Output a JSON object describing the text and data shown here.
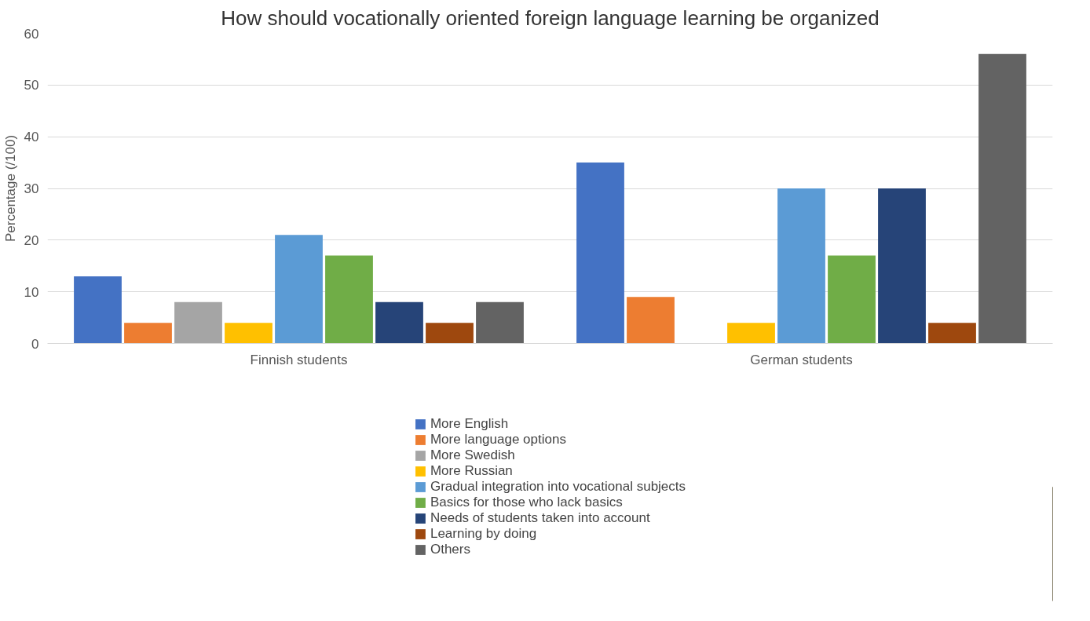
{
  "chart_data": {
    "type": "bar",
    "title": "How should vocationally oriented foreign language learning be organized",
    "ylabel": "Percentage (/100)",
    "categories": [
      "Finnish students",
      "German students"
    ],
    "series": [
      {
        "name": "More English",
        "color": "#4472c4",
        "values": [
          13,
          35
        ]
      },
      {
        "name": "More language options",
        "color": "#ed7d31",
        "values": [
          4,
          9
        ]
      },
      {
        "name": "More Swedish",
        "color": "#a5a5a5",
        "values": [
          8,
          0
        ]
      },
      {
        "name": "More Russian",
        "color": "#ffc000",
        "values": [
          4,
          4
        ]
      },
      {
        "name": "Gradual integration into vocational subjects",
        "color": "#5b9bd5",
        "values": [
          21,
          30
        ]
      },
      {
        "name": "Basics for those who lack basics",
        "color": "#70ad47",
        "values": [
          17,
          17
        ]
      },
      {
        "name": "Needs of students taken into account",
        "color": "#264478",
        "values": [
          8,
          30
        ]
      },
      {
        "name": "Learning by doing",
        "color": "#9e480e",
        "values": [
          4,
          4
        ]
      },
      {
        "name": "Others",
        "color": "#636363",
        "values": [
          8,
          56
        ]
      }
    ],
    "ylim": [
      0,
      60
    ],
    "yticks": [
      0,
      10,
      20,
      30,
      40,
      50,
      60
    ],
    "grid": "y",
    "legend": "bottom"
  }
}
